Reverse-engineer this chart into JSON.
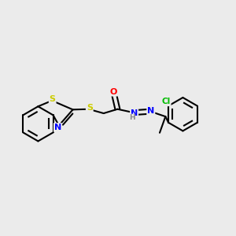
{
  "background_color": "#ebebeb",
  "bond_color": "#000000",
  "atom_colors": {
    "S": "#cccc00",
    "N": "#0000ff",
    "O": "#ff0000",
    "Cl": "#00bb00",
    "C": "#000000",
    "H": "#888888"
  },
  "figsize": [
    3.0,
    3.0
  ],
  "dpi": 100
}
